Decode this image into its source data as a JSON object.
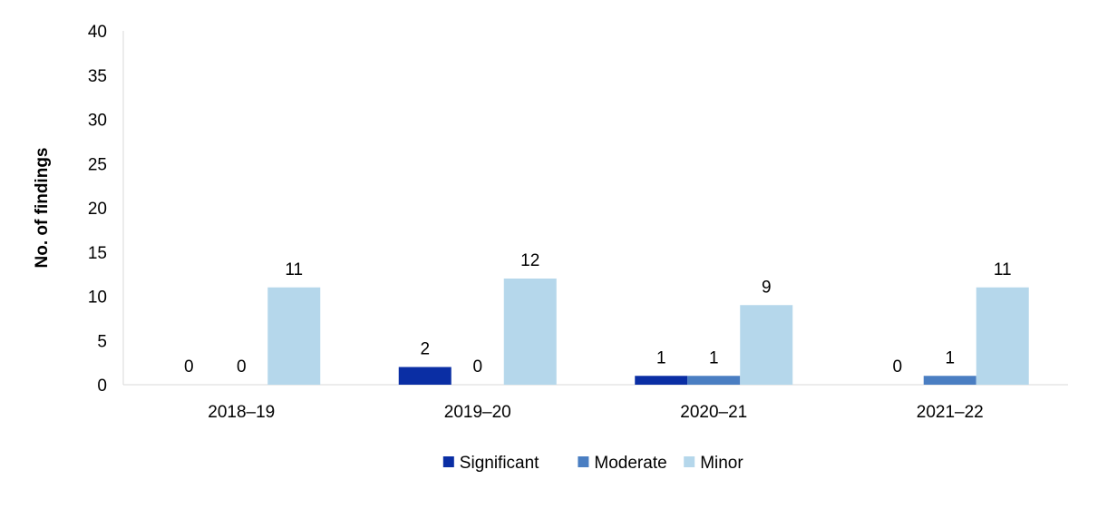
{
  "chart_data": {
    "type": "bar",
    "title": "",
    "xlabel": "",
    "ylabel": "No. of findings",
    "ylim": [
      0,
      40
    ],
    "yticks": [
      0,
      5,
      10,
      15,
      20,
      25,
      30,
      35,
      40
    ],
    "grid": false,
    "legend_position": "bottom",
    "categories": [
      "2018–19",
      "2019–20",
      "2020–21",
      "2021–22"
    ],
    "series": [
      {
        "name": "Significant",
        "color": "#0a2ea4",
        "values": [
          0,
          2,
          1,
          0
        ]
      },
      {
        "name": "Moderate",
        "color": "#4a7ec2",
        "values": [
          0,
          0,
          1,
          1
        ]
      },
      {
        "name": "Minor",
        "color": "#b5d7eb",
        "values": [
          11,
          12,
          9,
          11
        ]
      }
    ]
  }
}
